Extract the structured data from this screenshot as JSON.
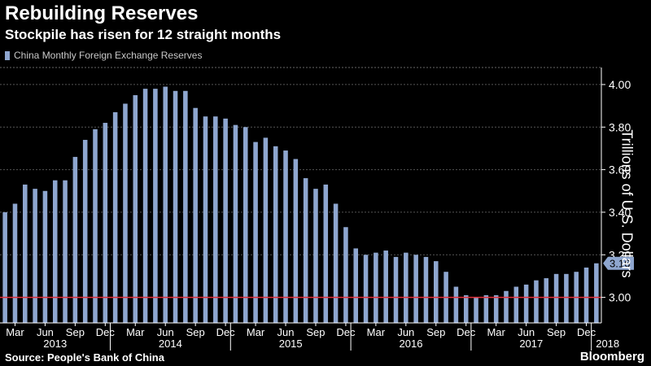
{
  "title": "Rebuilding Reserves",
  "subtitle": "Stockpile has risen for 12 straight months",
  "legend_label": "China Monthly Foreign Exchange Reserves",
  "source": "Source: People's Bank of China",
  "brand": "Bloomberg",
  "colors": {
    "bar": "#8ea6cf",
    "baseline": "#e0303b",
    "callout": "#8ea6cf",
    "background": "#000000"
  },
  "chart_data": {
    "type": "bar",
    "title": "Rebuilding Reserves",
    "subtitle": "Stockpile has risen for 12 straight months",
    "ylabel": "Trillions of U.S. Dollars",
    "ylim": [
      2.88,
      4.08
    ],
    "y_ticks": [
      "4.00",
      "3.80",
      "3.60",
      "3.40",
      "3.20",
      "3.00"
    ],
    "y_tick_values": [
      4.0,
      3.8,
      3.6,
      3.4,
      3.2,
      3.0
    ],
    "reference_line": 3.0,
    "last_value_label": "3.16",
    "x_month_ticks": [
      "Mar",
      "Jun",
      "Sep",
      "Dec",
      "Mar",
      "Jun",
      "Sep",
      "Dec",
      "Mar",
      "Jun",
      "Sep",
      "Dec",
      "Mar",
      "Jun",
      "Sep",
      "Dec",
      "Mar",
      "Jun",
      "Sep",
      "Dec"
    ],
    "x_year_labels": [
      "2013",
      "2014",
      "2015",
      "2016",
      "2017",
      "2018"
    ],
    "series": [
      {
        "name": "China Monthly Foreign Exchange Reserves",
        "categories": [
          "2013-02",
          "2013-03",
          "2013-04",
          "2013-05",
          "2013-06",
          "2013-07",
          "2013-08",
          "2013-09",
          "2013-10",
          "2013-11",
          "2013-12",
          "2014-01",
          "2014-02",
          "2014-03",
          "2014-04",
          "2014-05",
          "2014-06",
          "2014-07",
          "2014-08",
          "2014-09",
          "2014-10",
          "2014-11",
          "2014-12",
          "2015-01",
          "2015-02",
          "2015-03",
          "2015-04",
          "2015-05",
          "2015-06",
          "2015-07",
          "2015-08",
          "2015-09",
          "2015-10",
          "2015-11",
          "2015-12",
          "2016-01",
          "2016-02",
          "2016-03",
          "2016-04",
          "2016-05",
          "2016-06",
          "2016-07",
          "2016-08",
          "2016-09",
          "2016-10",
          "2016-11",
          "2016-12",
          "2017-01",
          "2017-02",
          "2017-03",
          "2017-04",
          "2017-05",
          "2017-06",
          "2017-07",
          "2017-08",
          "2017-09",
          "2017-10",
          "2017-11",
          "2017-12",
          "2018-01"
        ],
        "values": [
          3.4,
          3.44,
          3.53,
          3.51,
          3.5,
          3.55,
          3.55,
          3.66,
          3.74,
          3.79,
          3.82,
          3.87,
          3.91,
          3.95,
          3.98,
          3.98,
          3.99,
          3.97,
          3.97,
          3.89,
          3.85,
          3.85,
          3.84,
          3.81,
          3.8,
          3.73,
          3.75,
          3.71,
          3.69,
          3.65,
          3.56,
          3.51,
          3.53,
          3.44,
          3.33,
          3.23,
          3.2,
          3.21,
          3.22,
          3.19,
          3.21,
          3.2,
          3.19,
          3.17,
          3.12,
          3.05,
          3.01,
          3.0,
          3.01,
          3.01,
          3.03,
          3.05,
          3.06,
          3.08,
          3.09,
          3.11,
          3.11,
          3.12,
          3.14,
          3.16
        ]
      }
    ]
  }
}
